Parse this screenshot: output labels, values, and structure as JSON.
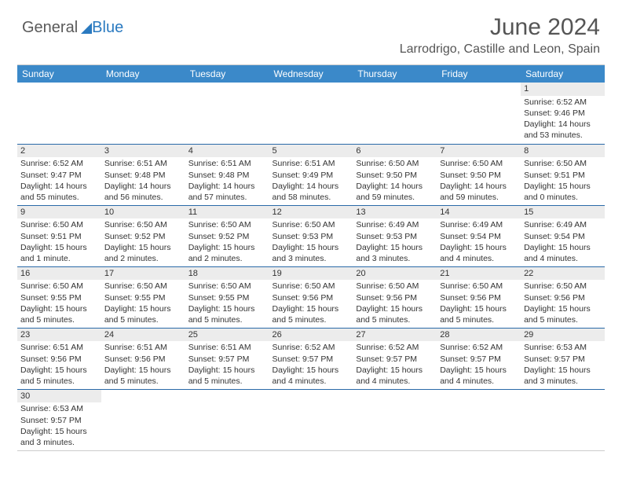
{
  "logo": {
    "part1": "General",
    "part2": "Blue"
  },
  "title": "June 2024",
  "location": "Larrodrigo, Castille and Leon, Spain",
  "columns": [
    "Sunday",
    "Monday",
    "Tuesday",
    "Wednesday",
    "Thursday",
    "Friday",
    "Saturday"
  ],
  "colors": {
    "header_bg": "#3b89c9",
    "header_text": "#ffffff",
    "row_divider": "#2a6aa8",
    "daynum_bg": "#ececec",
    "logo_blue": "#2a7ac0",
    "text": "#333333"
  },
  "weeks": [
    [
      null,
      null,
      null,
      null,
      null,
      null,
      {
        "n": "1",
        "sr": "Sunrise: 6:52 AM",
        "ss": "Sunset: 9:46 PM",
        "d1": "Daylight: 14 hours",
        "d2": "and 53 minutes."
      }
    ],
    [
      {
        "n": "2",
        "sr": "Sunrise: 6:52 AM",
        "ss": "Sunset: 9:47 PM",
        "d1": "Daylight: 14 hours",
        "d2": "and 55 minutes."
      },
      {
        "n": "3",
        "sr": "Sunrise: 6:51 AM",
        "ss": "Sunset: 9:48 PM",
        "d1": "Daylight: 14 hours",
        "d2": "and 56 minutes."
      },
      {
        "n": "4",
        "sr": "Sunrise: 6:51 AM",
        "ss": "Sunset: 9:48 PM",
        "d1": "Daylight: 14 hours",
        "d2": "and 57 minutes."
      },
      {
        "n": "5",
        "sr": "Sunrise: 6:51 AM",
        "ss": "Sunset: 9:49 PM",
        "d1": "Daylight: 14 hours",
        "d2": "and 58 minutes."
      },
      {
        "n": "6",
        "sr": "Sunrise: 6:50 AM",
        "ss": "Sunset: 9:50 PM",
        "d1": "Daylight: 14 hours",
        "d2": "and 59 minutes."
      },
      {
        "n": "7",
        "sr": "Sunrise: 6:50 AM",
        "ss": "Sunset: 9:50 PM",
        "d1": "Daylight: 14 hours",
        "d2": "and 59 minutes."
      },
      {
        "n": "8",
        "sr": "Sunrise: 6:50 AM",
        "ss": "Sunset: 9:51 PM",
        "d1": "Daylight: 15 hours",
        "d2": "and 0 minutes."
      }
    ],
    [
      {
        "n": "9",
        "sr": "Sunrise: 6:50 AM",
        "ss": "Sunset: 9:51 PM",
        "d1": "Daylight: 15 hours",
        "d2": "and 1 minute."
      },
      {
        "n": "10",
        "sr": "Sunrise: 6:50 AM",
        "ss": "Sunset: 9:52 PM",
        "d1": "Daylight: 15 hours",
        "d2": "and 2 minutes."
      },
      {
        "n": "11",
        "sr": "Sunrise: 6:50 AM",
        "ss": "Sunset: 9:52 PM",
        "d1": "Daylight: 15 hours",
        "d2": "and 2 minutes."
      },
      {
        "n": "12",
        "sr": "Sunrise: 6:50 AM",
        "ss": "Sunset: 9:53 PM",
        "d1": "Daylight: 15 hours",
        "d2": "and 3 minutes."
      },
      {
        "n": "13",
        "sr": "Sunrise: 6:49 AM",
        "ss": "Sunset: 9:53 PM",
        "d1": "Daylight: 15 hours",
        "d2": "and 3 minutes."
      },
      {
        "n": "14",
        "sr": "Sunrise: 6:49 AM",
        "ss": "Sunset: 9:54 PM",
        "d1": "Daylight: 15 hours",
        "d2": "and 4 minutes."
      },
      {
        "n": "15",
        "sr": "Sunrise: 6:49 AM",
        "ss": "Sunset: 9:54 PM",
        "d1": "Daylight: 15 hours",
        "d2": "and 4 minutes."
      }
    ],
    [
      {
        "n": "16",
        "sr": "Sunrise: 6:50 AM",
        "ss": "Sunset: 9:55 PM",
        "d1": "Daylight: 15 hours",
        "d2": "and 5 minutes."
      },
      {
        "n": "17",
        "sr": "Sunrise: 6:50 AM",
        "ss": "Sunset: 9:55 PM",
        "d1": "Daylight: 15 hours",
        "d2": "and 5 minutes."
      },
      {
        "n": "18",
        "sr": "Sunrise: 6:50 AM",
        "ss": "Sunset: 9:55 PM",
        "d1": "Daylight: 15 hours",
        "d2": "and 5 minutes."
      },
      {
        "n": "19",
        "sr": "Sunrise: 6:50 AM",
        "ss": "Sunset: 9:56 PM",
        "d1": "Daylight: 15 hours",
        "d2": "and 5 minutes."
      },
      {
        "n": "20",
        "sr": "Sunrise: 6:50 AM",
        "ss": "Sunset: 9:56 PM",
        "d1": "Daylight: 15 hours",
        "d2": "and 5 minutes."
      },
      {
        "n": "21",
        "sr": "Sunrise: 6:50 AM",
        "ss": "Sunset: 9:56 PM",
        "d1": "Daylight: 15 hours",
        "d2": "and 5 minutes."
      },
      {
        "n": "22",
        "sr": "Sunrise: 6:50 AM",
        "ss": "Sunset: 9:56 PM",
        "d1": "Daylight: 15 hours",
        "d2": "and 5 minutes."
      }
    ],
    [
      {
        "n": "23",
        "sr": "Sunrise: 6:51 AM",
        "ss": "Sunset: 9:56 PM",
        "d1": "Daylight: 15 hours",
        "d2": "and 5 minutes."
      },
      {
        "n": "24",
        "sr": "Sunrise: 6:51 AM",
        "ss": "Sunset: 9:56 PM",
        "d1": "Daylight: 15 hours",
        "d2": "and 5 minutes."
      },
      {
        "n": "25",
        "sr": "Sunrise: 6:51 AM",
        "ss": "Sunset: 9:57 PM",
        "d1": "Daylight: 15 hours",
        "d2": "and 5 minutes."
      },
      {
        "n": "26",
        "sr": "Sunrise: 6:52 AM",
        "ss": "Sunset: 9:57 PM",
        "d1": "Daylight: 15 hours",
        "d2": "and 4 minutes."
      },
      {
        "n": "27",
        "sr": "Sunrise: 6:52 AM",
        "ss": "Sunset: 9:57 PM",
        "d1": "Daylight: 15 hours",
        "d2": "and 4 minutes."
      },
      {
        "n": "28",
        "sr": "Sunrise: 6:52 AM",
        "ss": "Sunset: 9:57 PM",
        "d1": "Daylight: 15 hours",
        "d2": "and 4 minutes."
      },
      {
        "n": "29",
        "sr": "Sunrise: 6:53 AM",
        "ss": "Sunset: 9:57 PM",
        "d1": "Daylight: 15 hours",
        "d2": "and 3 minutes."
      }
    ],
    [
      {
        "n": "30",
        "sr": "Sunrise: 6:53 AM",
        "ss": "Sunset: 9:57 PM",
        "d1": "Daylight: 15 hours",
        "d2": "and 3 minutes."
      },
      null,
      null,
      null,
      null,
      null,
      null
    ]
  ]
}
